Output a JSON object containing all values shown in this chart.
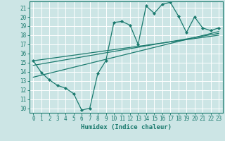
{
  "xlabel": "Humidex (Indice chaleur)",
  "bg_color": "#cce5e5",
  "grid_color": "#ffffff",
  "line_color": "#1a7a6e",
  "xlim": [
    -0.5,
    23.5
  ],
  "ylim": [
    9.5,
    21.7
  ],
  "xticks": [
    0,
    1,
    2,
    3,
    4,
    5,
    6,
    7,
    8,
    9,
    10,
    11,
    12,
    13,
    14,
    15,
    16,
    17,
    18,
    19,
    20,
    21,
    22,
    23
  ],
  "yticks": [
    10,
    11,
    12,
    13,
    14,
    15,
    16,
    17,
    18,
    19,
    20,
    21
  ],
  "data_x": [
    0,
    1,
    2,
    3,
    4,
    5,
    6,
    7,
    8,
    9,
    10,
    11,
    12,
    13,
    14,
    15,
    16,
    17,
    18,
    19,
    20,
    21,
    22,
    23
  ],
  "data_y": [
    15.2,
    13.9,
    13.1,
    12.5,
    12.2,
    11.6,
    9.8,
    10.0,
    13.8,
    15.2,
    19.4,
    19.5,
    19.1,
    17.0,
    21.2,
    20.4,
    21.4,
    21.6,
    20.1,
    18.3,
    20.0,
    18.8,
    18.5,
    18.8
  ],
  "trend_x": [
    0,
    23
  ],
  "trend1_y": [
    13.4,
    18.4
  ],
  "trend2_y": [
    14.7,
    18.2
  ],
  "trend3_y": [
    15.2,
    18.0
  ],
  "tick_fontsize": 5.5,
  "xlabel_fontsize": 6.5,
  "marker_size": 2.2,
  "linewidth": 0.9
}
